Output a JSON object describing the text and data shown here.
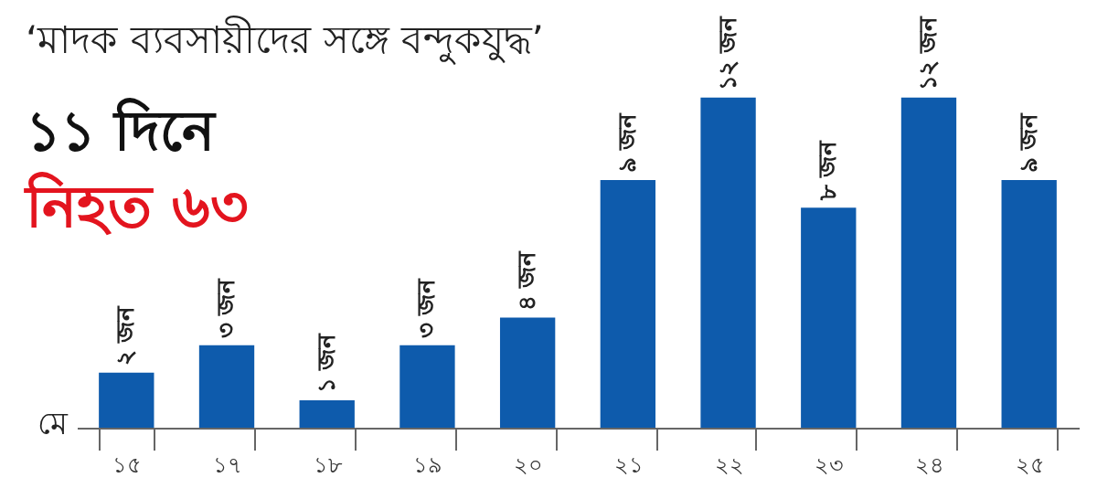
{
  "chart_data": {
    "type": "bar",
    "title": "‘মাদক ব্যবসায়ীদের সঙ্গে বন্দুকযুদ্ধ’",
    "subtitle": "১১ দিনে",
    "annotations": [
      "নিহত ৬৩"
    ],
    "xlabel": "মে",
    "categories": [
      "১৫",
      "১৭",
      "১৮",
      "১৯",
      "২০",
      "২১",
      "২২",
      "২৩",
      "২৪",
      "২৫"
    ],
    "values": [
      2,
      3,
      1,
      3,
      4,
      9,
      12,
      8,
      12,
      9
    ],
    "value_labels": [
      "২ জন",
      "৩ জন",
      "১ জন",
      "৩ জন",
      "৪ জন",
      "৯ জন",
      "১২ জন",
      "৮ জন",
      "১২ জন",
      "৯ জন"
    ],
    "color": "#0e5bac",
    "grid": false
  }
}
